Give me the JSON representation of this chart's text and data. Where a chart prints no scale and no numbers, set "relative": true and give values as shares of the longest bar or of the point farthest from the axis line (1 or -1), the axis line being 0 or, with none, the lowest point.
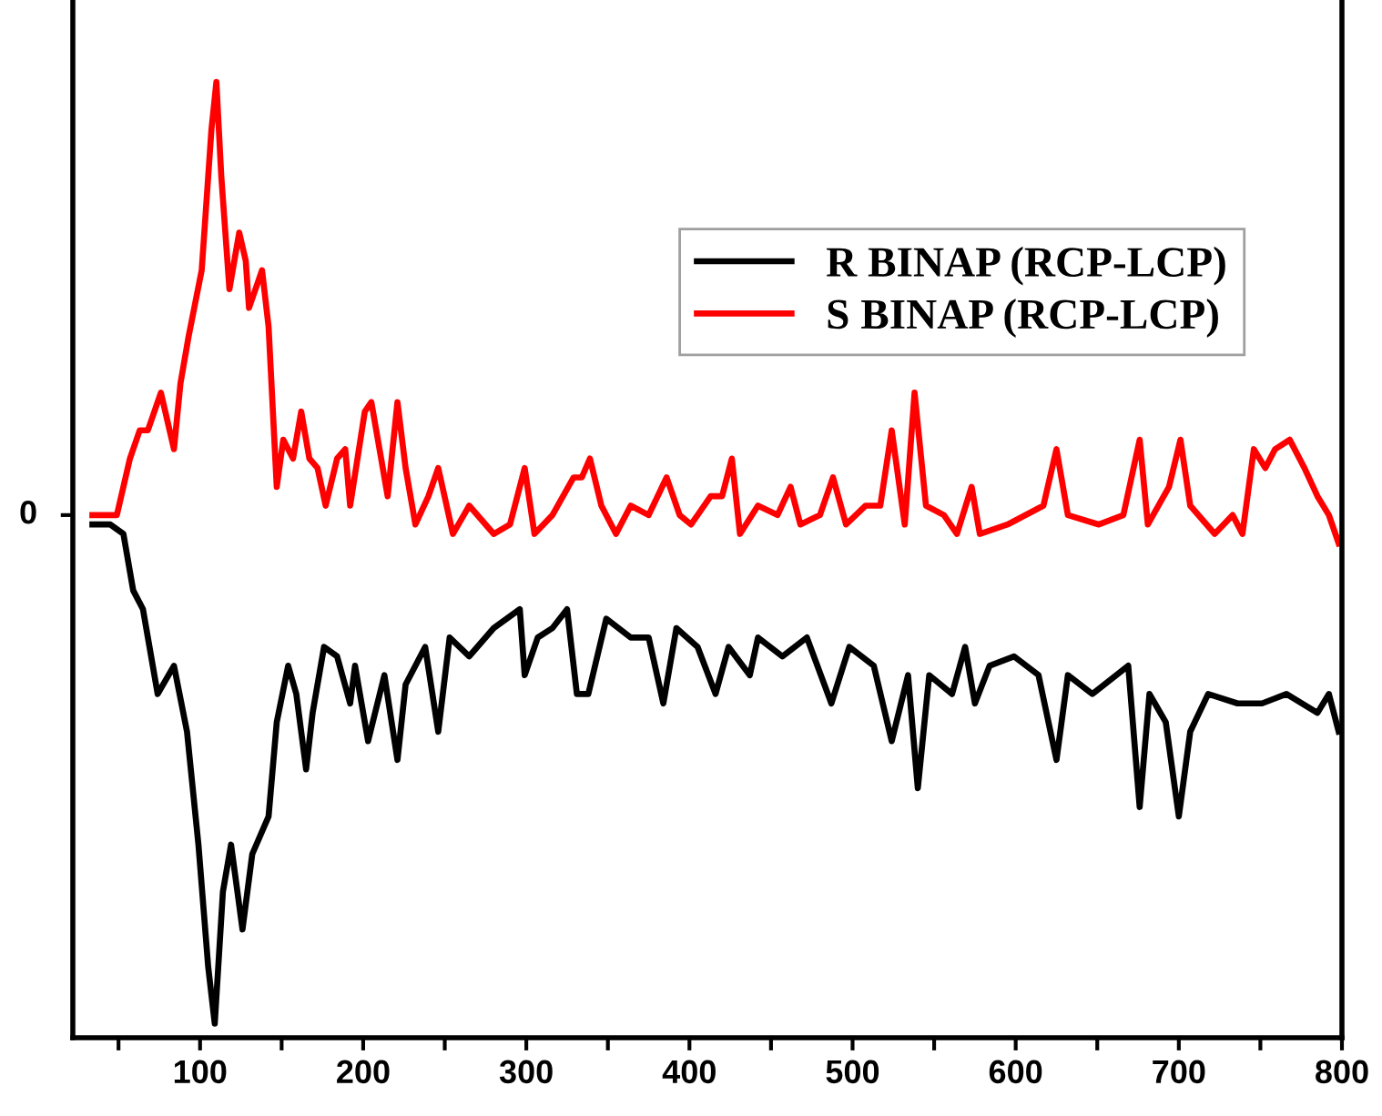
{
  "chart_data": {
    "type": "line",
    "relative": true,
    "xlim": [
      22,
      800
    ],
    "xticks": [
      {
        "value": 50,
        "label": null
      },
      100,
      {
        "value": 150,
        "label": null
      },
      200,
      {
        "value": 250,
        "label": null
      },
      300,
      {
        "value": 350,
        "label": null
      },
      400,
      {
        "value": 450,
        "label": null
      },
      500,
      {
        "value": 550,
        "label": null
      },
      600,
      {
        "value": 650,
        "label": null
      },
      700,
      {
        "value": 750,
        "label": null
      },
      800
    ],
    "annotations": [
      "0"
    ],
    "legend": "top right",
    "grid": false,
    "marker": "none",
    "line_style": "solid",
    "series": [
      {
        "name": "R BINAP (RCP-LCP)",
        "color": "#000000",
        "x": [
          34,
          45,
          53,
          59,
          65,
          74,
          84,
          92,
          99,
          105,
          109,
          114,
          119,
          126,
          132,
          142,
          147,
          154,
          159,
          165,
          169,
          176,
          184,
          192,
          195,
          203,
          213,
          221,
          226,
          238,
          246,
          253,
          265,
          280,
          296,
          299,
          307,
          316,
          325,
          331,
          338,
          349,
          364,
          375,
          384,
          392,
          405,
          416,
          424,
          437,
          442,
          457,
          472,
          487,
          498,
          513,
          524,
          534,
          540,
          547,
          561,
          569,
          575,
          584,
          599,
          614,
          625,
          632,
          647,
          669,
          676,
          682,
          692,
          700,
          707,
          718,
          736,
          751,
          766,
          785,
          792,
          798
        ],
        "values": [
          0.53,
          0.53,
          0.52,
          0.46,
          0.44,
          0.35,
          0.38,
          0.31,
          0.19,
          0.06,
          0.0,
          0.14,
          0.19,
          0.1,
          0.18,
          0.22,
          0.32,
          0.38,
          0.35,
          0.27,
          0.33,
          0.4,
          0.39,
          0.34,
          0.38,
          0.3,
          0.37,
          0.28,
          0.36,
          0.4,
          0.31,
          0.41,
          0.39,
          0.42,
          0.44,
          0.37,
          0.41,
          0.42,
          0.44,
          0.35,
          0.35,
          0.43,
          0.41,
          0.41,
          0.34,
          0.42,
          0.4,
          0.35,
          0.4,
          0.37,
          0.41,
          0.39,
          0.41,
          0.34,
          0.4,
          0.38,
          0.3,
          0.37,
          0.25,
          0.37,
          0.35,
          0.4,
          0.34,
          0.38,
          0.39,
          0.37,
          0.28,
          0.37,
          0.35,
          0.38,
          0.23,
          0.35,
          0.32,
          0.22,
          0.31,
          0.35,
          0.34,
          0.34,
          0.35,
          0.33,
          0.35,
          0.31
        ]
      },
      {
        "name": "S BINAP (RCP-LCP)",
        "color": "#ff0000",
        "x": [
          34,
          49,
          57,
          63,
          68,
          76,
          84,
          88,
          93,
          101,
          107,
          110,
          113,
          118,
          124,
          128,
          130,
          138,
          142,
          147,
          151,
          157,
          162,
          167,
          172,
          177,
          184,
          189,
          192,
          201,
          205,
          211,
          215,
          221,
          226,
          232,
          240,
          246,
          255,
          265,
          280,
          290,
          299,
          305,
          316,
          329,
          334,
          339,
          346,
          355,
          364,
          375,
          386,
          394,
          401,
          413,
          420,
          426,
          431,
          442,
          454,
          462,
          468,
          480,
          488,
          496,
          508,
          517,
          524,
          532,
          538,
          545,
          556,
          564,
          573,
          578,
          595,
          617,
          625,
          632,
          651,
          666,
          676,
          681,
          694,
          701,
          707,
          722,
          733,
          739,
          746,
          753,
          759,
          768,
          777,
          785,
          792,
          798
        ],
        "values": [
          0.54,
          0.54,
          0.6,
          0.63,
          0.63,
          0.67,
          0.61,
          0.68,
          0.73,
          0.8,
          0.95,
          1.0,
          0.9,
          0.78,
          0.84,
          0.81,
          0.76,
          0.8,
          0.74,
          0.57,
          0.62,
          0.6,
          0.65,
          0.6,
          0.59,
          0.55,
          0.6,
          0.61,
          0.55,
          0.65,
          0.66,
          0.6,
          0.56,
          0.66,
          0.59,
          0.53,
          0.56,
          0.59,
          0.52,
          0.55,
          0.52,
          0.53,
          0.59,
          0.52,
          0.54,
          0.58,
          0.58,
          0.6,
          0.55,
          0.52,
          0.55,
          0.54,
          0.58,
          0.54,
          0.53,
          0.56,
          0.56,
          0.6,
          0.52,
          0.55,
          0.54,
          0.57,
          0.53,
          0.54,
          0.58,
          0.53,
          0.55,
          0.55,
          0.63,
          0.53,
          0.67,
          0.55,
          0.54,
          0.52,
          0.57,
          0.52,
          0.53,
          0.55,
          0.61,
          0.54,
          0.53,
          0.54,
          0.62,
          0.53,
          0.57,
          0.62,
          0.55,
          0.52,
          0.54,
          0.52,
          0.61,
          0.59,
          0.61,
          0.62,
          0.59,
          0.56,
          0.54,
          0.51
        ]
      }
    ]
  }
}
